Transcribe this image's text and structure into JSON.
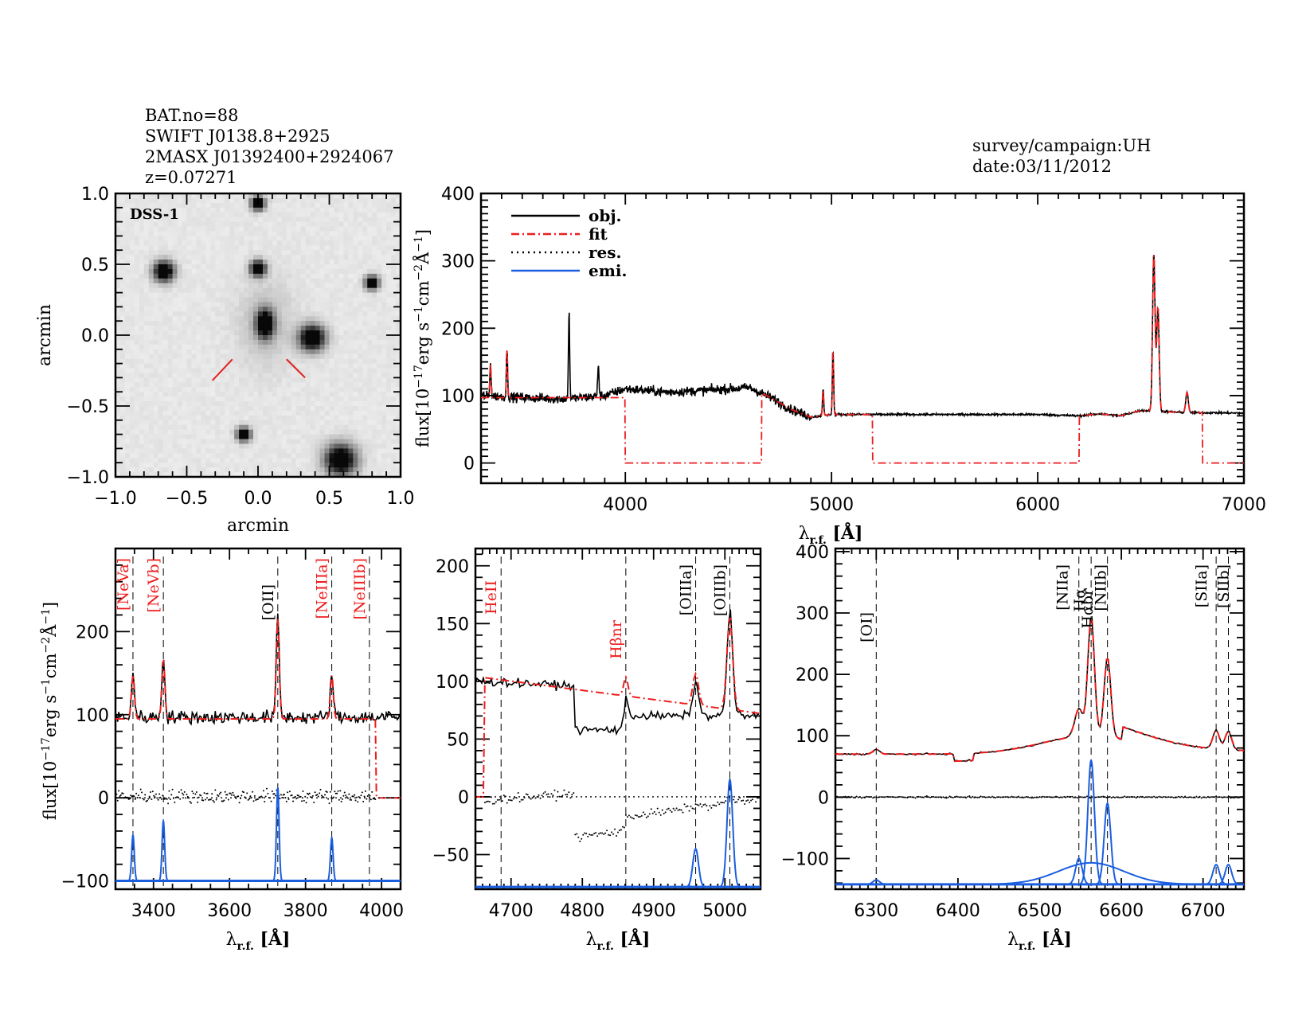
{
  "header_left": {
    "bat_no": "BAT.no=88",
    "swift_name": "SWIFT J0138.8+2925",
    "twomass_name": "2MASX J01392400+2924067",
    "redshift": "z=0.07271"
  },
  "header_right": {
    "survey": "survey/campaign:UH",
    "date": "date:03/11/2012"
  },
  "colors": {
    "obj": "#000000",
    "fit": "#ee1c1c",
    "res": "#000000",
    "emi": "#1a5ee0",
    "marker": "#e02020"
  },
  "chart_data": [
    {
      "id": "dss_image",
      "type": "image",
      "label": "DSS-1",
      "xlabel": "arcmin",
      "ylabel": "arcmin",
      "xlim": [
        -1.0,
        1.0
      ],
      "ylim": [
        -1.0,
        1.0
      ],
      "xticks": [
        "-1.0",
        "-0.5",
        "0.0",
        "0.5",
        "1.0"
      ],
      "yticks": [
        "-1.0",
        "-0.5",
        "0.0",
        "0.5",
        "1.0"
      ],
      "sources": [
        {
          "x": 0.0,
          "y": 0.93,
          "r": 0.04
        },
        {
          "x": -0.66,
          "y": 0.45,
          "r": 0.06
        },
        {
          "x": 0.0,
          "y": 0.47,
          "r": 0.045
        },
        {
          "x": 0.8,
          "y": 0.37,
          "r": 0.04
        },
        {
          "x": 0.05,
          "y": 0.08,
          "r": 0.08,
          "elong": true
        },
        {
          "x": 0.38,
          "y": -0.02,
          "r": 0.075
        },
        {
          "x": -0.1,
          "y": -0.7,
          "r": 0.04
        },
        {
          "x": 0.58,
          "y": -0.88,
          "r": 0.09
        }
      ]
    },
    {
      "id": "full_spectrum",
      "type": "line",
      "xlabel": "λr.f. [Å]",
      "ylabel": "flux[10^-17 erg s^-1 cm^-2 Å^-1]",
      "xlim": [
        3300,
        7000
      ],
      "ylim": [
        -30,
        400
      ],
      "xticks": [
        4000,
        5000,
        6000,
        7000
      ],
      "yticks": [
        0,
        100,
        200,
        300,
        400
      ],
      "legend": {
        "position": "top-left",
        "entries": [
          "obj.",
          "fit",
          "res.",
          "emi."
        ]
      },
      "continuum": [
        [
          3300,
          100
        ],
        [
          3500,
          97
        ],
        [
          3700,
          95
        ],
        [
          3900,
          100
        ],
        [
          4000,
          110
        ],
        [
          4200,
          105
        ],
        [
          4400,
          108
        ],
        [
          4600,
          112
        ],
        [
          4700,
          98
        ],
        [
          4800,
          80
        ],
        [
          4900,
          68
        ],
        [
          5000,
          72
        ],
        [
          5200,
          72
        ],
        [
          5500,
          72
        ],
        [
          6000,
          72
        ],
        [
          6200,
          70
        ],
        [
          6300,
          73
        ],
        [
          6400,
          70
        ],
        [
          6500,
          78
        ],
        [
          6700,
          75
        ],
        [
          7000,
          74
        ]
      ],
      "emission_lines": [
        {
          "x": 3346,
          "peak": 150
        },
        {
          "x": 3426,
          "peak": 170
        },
        {
          "x": 3727,
          "peak": 225
        },
        {
          "x": 3869,
          "peak": 148
        },
        {
          "x": 4959,
          "peak": 110
        },
        {
          "x": 5007,
          "peak": 168
        },
        {
          "x": 6563,
          "peak": 310
        },
        {
          "x": 6583,
          "peak": 230
        },
        {
          "x": 6724,
          "peak": 105
        }
      ],
      "fit_gaps": [
        [
          4000,
          4660
        ],
        [
          5200,
          6200
        ],
        [
          6800,
          7000
        ]
      ]
    },
    {
      "id": "zoom_neon",
      "type": "line",
      "xlabel": "λr.f. [Å]",
      "ylabel": "flux[10^-17 erg s^-1 cm^-2 Å^-1]",
      "xlim": [
        3300,
        4050
      ],
      "ylim": [
        -110,
        300
      ],
      "xticks": [
        3400,
        3600,
        3800,
        4000
      ],
      "yticks": [
        -100,
        0,
        100,
        200
      ],
      "continuum_level": 97,
      "lines": [
        {
          "label": "[NeVa]",
          "x": 3346,
          "color": "red",
          "peak": 150,
          "emi_peak": -45
        },
        {
          "label": "[NeVb]",
          "x": 3426,
          "color": "red",
          "peak": 170,
          "emi_peak": -28
        },
        {
          "label": "[OII]",
          "x": 3727,
          "color": "black",
          "peak": 218,
          "emi_peak": 12
        },
        {
          "label": "[NeIIIa]",
          "x": 3869,
          "color": "red",
          "peak": 150,
          "emi_peak": -48
        },
        {
          "label": "[NeIIIb]",
          "x": 3968,
          "color": "red",
          "peak": 97,
          "emi_peak": -100
        }
      ],
      "emi_baseline": -100
    },
    {
      "id": "zoom_hbeta",
      "type": "line",
      "xlabel": "λr.f. [Å]",
      "ylabel": "",
      "xlim": [
        4650,
        5050
      ],
      "ylim": [
        -80,
        215
      ],
      "xticks": [
        4700,
        4800,
        4900,
        5000
      ],
      "yticks": [
        -50,
        0,
        50,
        100,
        150,
        200
      ],
      "lines": [
        {
          "label": "HeII",
          "x": 4686,
          "color": "red",
          "emi_peak": -78
        },
        {
          "label": "Hβnr",
          "x": 4861,
          "color": "red",
          "emi_peak": -78
        },
        {
          "label": "[OIIIa]",
          "x": 4959,
          "color": "black",
          "emi_peak": -45
        },
        {
          "label": "[OIIIb]",
          "x": 5007,
          "color": "black",
          "emi_peak": 15
        }
      ],
      "emi_baseline": -78
    },
    {
      "id": "zoom_halpha",
      "type": "line",
      "xlabel": "λr.f. [Å]",
      "ylabel": "",
      "xlim": [
        6250,
        6750
      ],
      "ylim": [
        -150,
        405
      ],
      "xticks": [
        6300,
        6400,
        6500,
        6600,
        6700
      ],
      "yticks": [
        -100,
        0,
        100,
        200,
        300,
        400
      ],
      "lines": [
        {
          "label": "[OI]",
          "x": 6300,
          "color": "black",
          "emi_peak": -135
        },
        {
          "label": "[NIIa]",
          "x": 6548,
          "color": "black",
          "emi_peak": -100
        },
        {
          "label": "Hα",
          "x": 6563,
          "color": "black",
          "emi_peak": 60
        },
        {
          "label": "Hαbr",
          "x": 6563,
          "color": "black",
          "emi_peak": -107
        },
        {
          "label": "[NIIb]",
          "x": 6583,
          "color": "black",
          "emi_peak": -10
        },
        {
          "label": "[SIIa]",
          "x": 6716,
          "color": "black",
          "emi_peak": -110
        },
        {
          "label": "[SIIb]",
          "x": 6731,
          "color": "black",
          "emi_peak": -110
        }
      ],
      "emi_baseline": -142
    }
  ]
}
